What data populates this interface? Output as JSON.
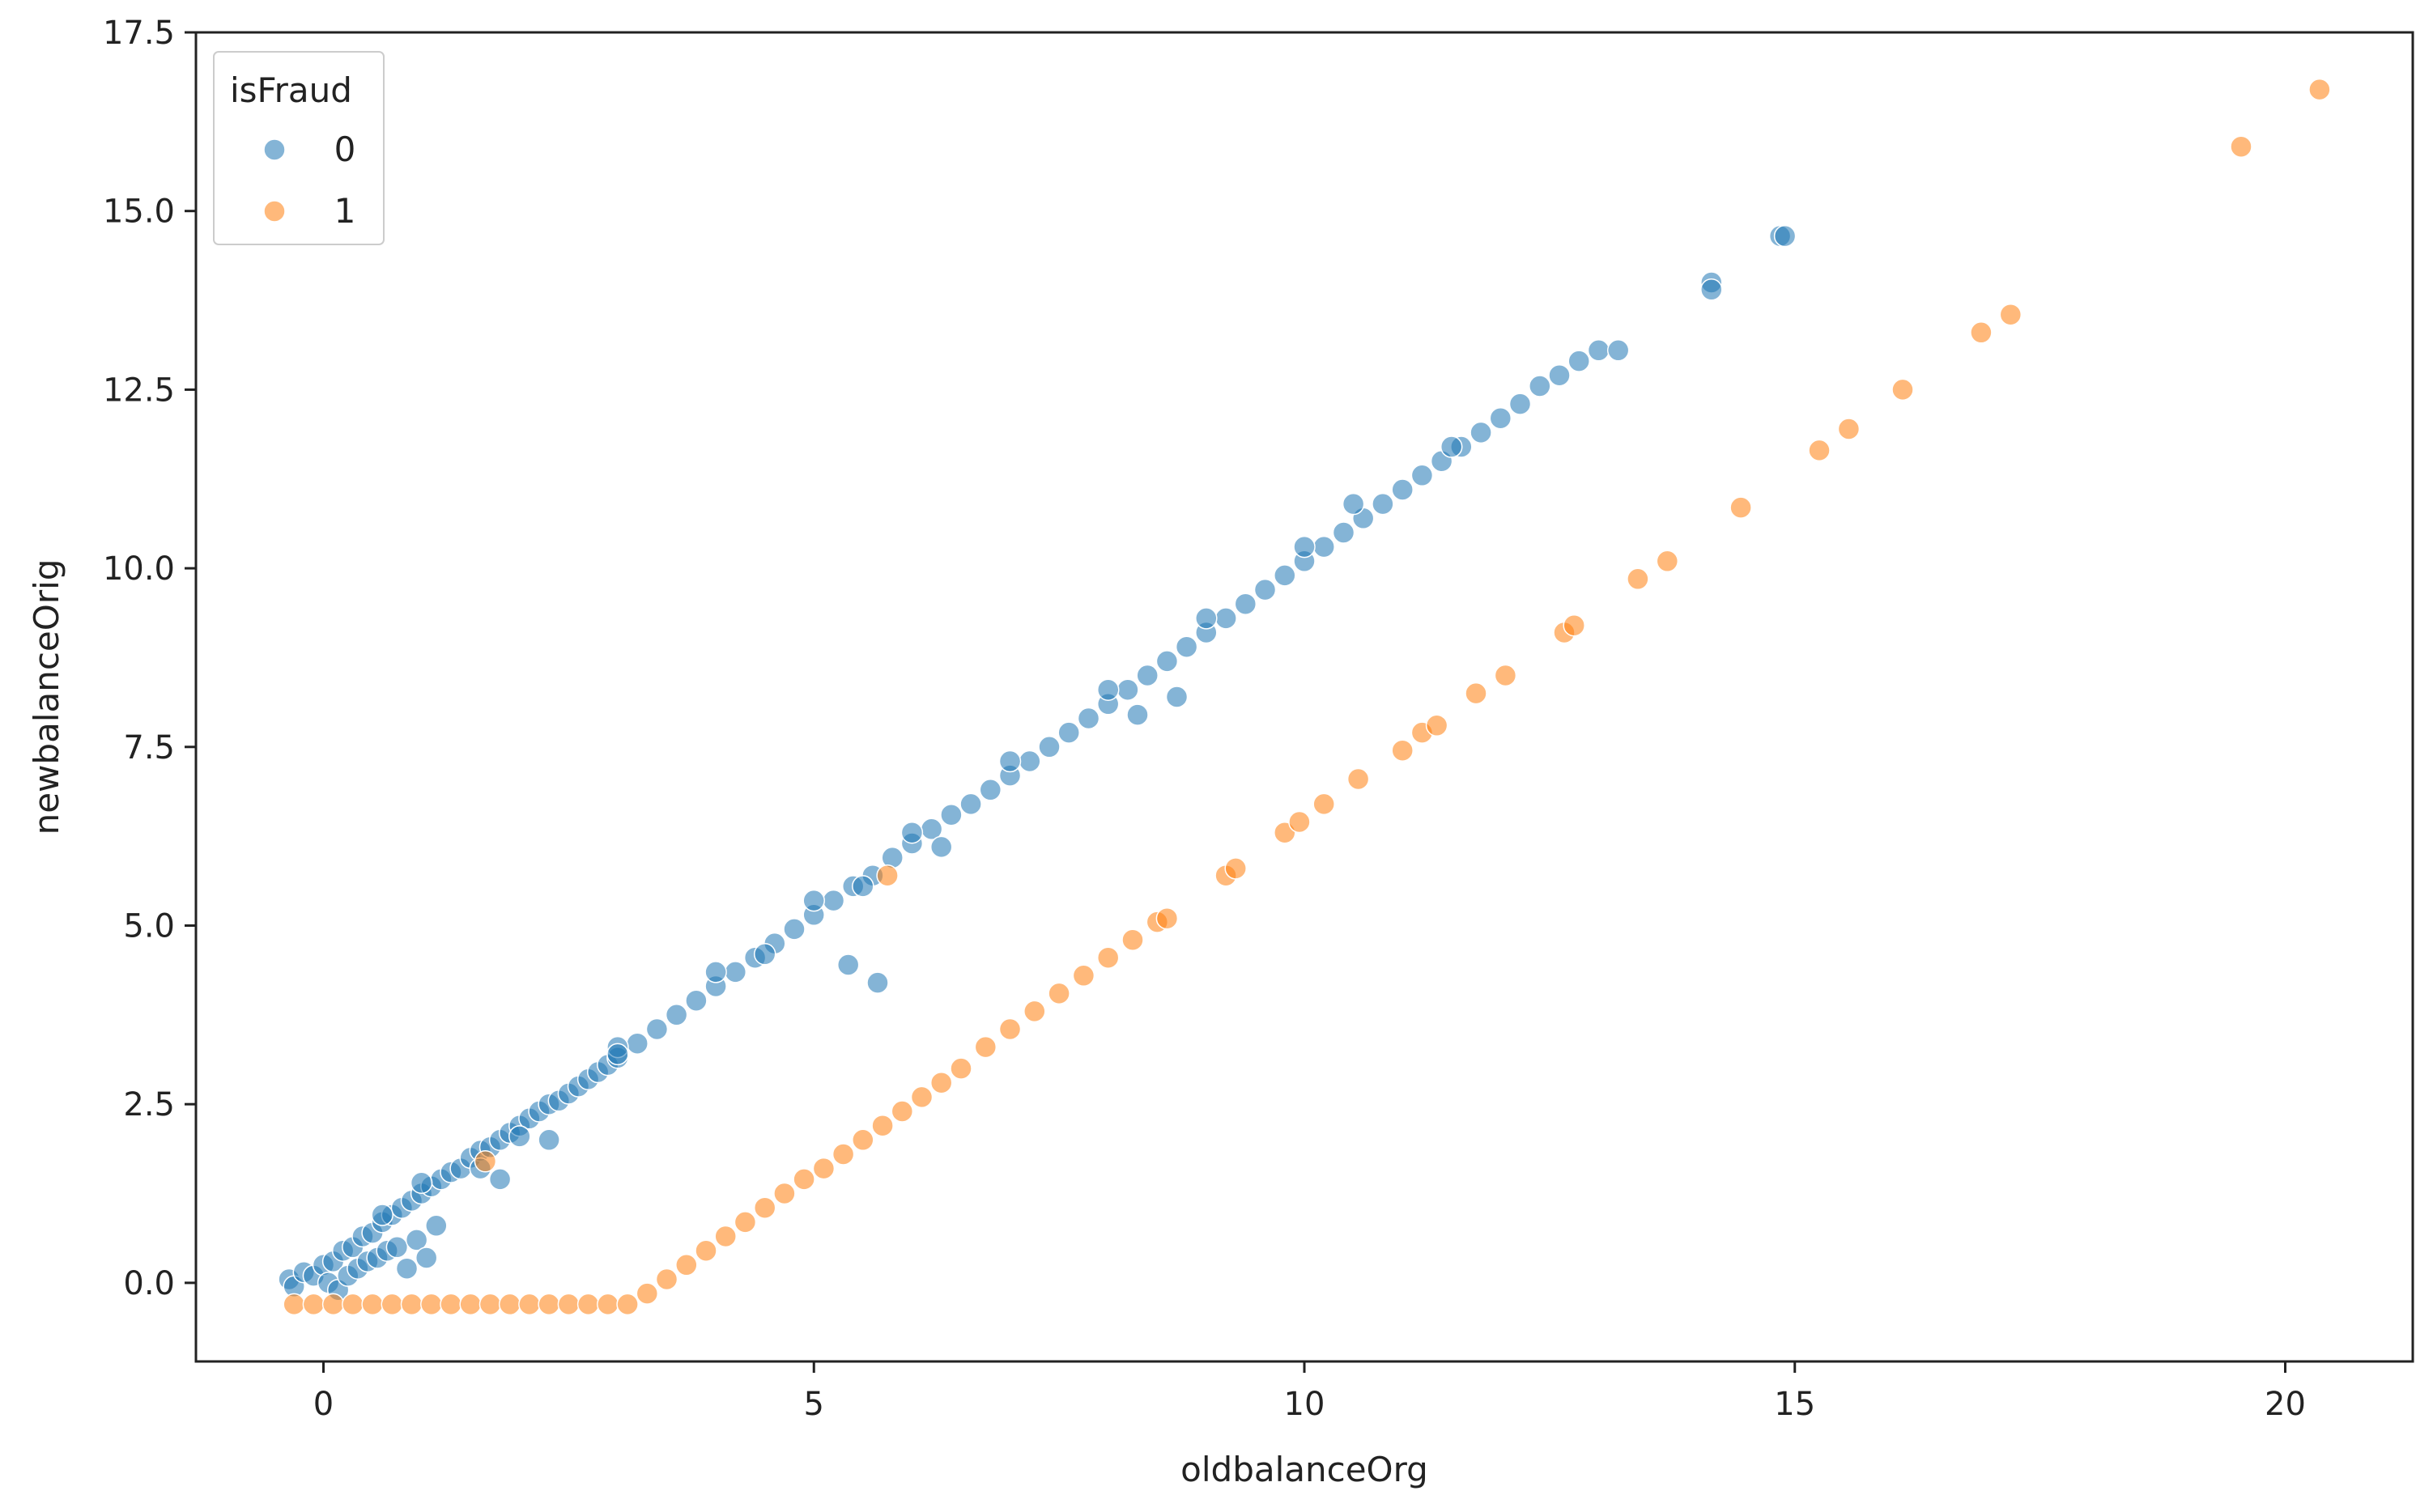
{
  "chart_data": {
    "type": "scatter",
    "title": "",
    "xlabel": "oldbalanceOrg",
    "ylabel": "newbalanceOrig",
    "xlim": [
      -1.3,
      21.3
    ],
    "ylim": [
      -1.1,
      17.5
    ],
    "x_ticks": [
      0,
      5,
      10,
      15,
      20
    ],
    "x_tick_labels": [
      "0",
      "5",
      "10",
      "15",
      "20"
    ],
    "y_ticks": [
      0,
      2.5,
      5,
      7.5,
      10,
      12.5,
      15,
      17.5
    ],
    "y_tick_labels": [
      "0.0",
      "2.5",
      "5.0",
      "7.5",
      "10.0",
      "12.5",
      "15.0",
      "17.5"
    ],
    "grid": false,
    "legend": {
      "title": "isFraud",
      "placement": "top-left",
      "entries": [
        {
          "label": "0",
          "color": "#1f77b4"
        },
        {
          "label": "1",
          "color": "#ff7f0e"
        }
      ]
    },
    "colors": {
      "0": "#1f77b4",
      "1": "#ff7f0e"
    },
    "series": [
      {
        "name": "0",
        "color": "#1f77b4",
        "points": [
          [
            -0.35,
            0.05
          ],
          [
            -0.3,
            -0.05
          ],
          [
            -0.2,
            0.15
          ],
          [
            -0.1,
            0.1
          ],
          [
            0.0,
            0.25
          ],
          [
            0.05,
            0.0
          ],
          [
            0.1,
            0.3
          ],
          [
            0.15,
            -0.1
          ],
          [
            0.2,
            0.45
          ],
          [
            0.25,
            0.1
          ],
          [
            0.3,
            0.5
          ],
          [
            0.35,
            0.2
          ],
          [
            0.4,
            0.65
          ],
          [
            0.45,
            0.3
          ],
          [
            0.5,
            0.7
          ],
          [
            0.55,
            0.35
          ],
          [
            0.6,
            0.85
          ],
          [
            0.65,
            0.45
          ],
          [
            0.7,
            0.95
          ],
          [
            0.75,
            0.5
          ],
          [
            0.8,
            1.05
          ],
          [
            0.85,
            0.2
          ],
          [
            0.9,
            1.15
          ],
          [
            0.95,
            0.6
          ],
          [
            1.0,
            1.25
          ],
          [
            1.05,
            0.35
          ],
          [
            1.1,
            1.35
          ],
          [
            1.15,
            0.8
          ],
          [
            1.2,
            1.45
          ],
          [
            1.3,
            1.55
          ],
          [
            1.4,
            1.6
          ],
          [
            1.5,
            1.75
          ],
          [
            1.6,
            1.85
          ],
          [
            1.7,
            1.9
          ],
          [
            1.8,
            2.0
          ],
          [
            1.9,
            2.1
          ],
          [
            2.0,
            2.2
          ],
          [
            2.1,
            2.3
          ],
          [
            2.2,
            2.4
          ],
          [
            2.3,
            2.5
          ],
          [
            2.4,
            2.55
          ],
          [
            2.5,
            2.65
          ],
          [
            2.6,
            2.75
          ],
          [
            2.7,
            2.85
          ],
          [
            2.8,
            2.95
          ],
          [
            2.9,
            3.05
          ],
          [
            3.0,
            3.15
          ],
          [
            3.2,
            3.35
          ],
          [
            3.4,
            3.55
          ],
          [
            3.6,
            3.75
          ],
          [
            3.8,
            3.95
          ],
          [
            4.0,
            4.15
          ],
          [
            4.2,
            4.35
          ],
          [
            4.4,
            4.55
          ],
          [
            4.6,
            4.75
          ],
          [
            4.8,
            4.95
          ],
          [
            5.0,
            5.15
          ],
          [
            5.2,
            5.35
          ],
          [
            5.4,
            5.55
          ],
          [
            5.6,
            5.7
          ],
          [
            5.8,
            5.95
          ],
          [
            6.0,
            6.15
          ],
          [
            6.2,
            6.35
          ],
          [
            6.4,
            6.55
          ],
          [
            6.6,
            6.7
          ],
          [
            6.8,
            6.9
          ],
          [
            7.0,
            7.1
          ],
          [
            7.2,
            7.3
          ],
          [
            7.4,
            7.5
          ],
          [
            7.6,
            7.7
          ],
          [
            7.8,
            7.9
          ],
          [
            8.0,
            8.1
          ],
          [
            8.2,
            8.3
          ],
          [
            8.4,
            8.5
          ],
          [
            8.6,
            8.7
          ],
          [
            8.8,
            8.9
          ],
          [
            9.0,
            9.1
          ],
          [
            9.2,
            9.3
          ],
          [
            9.4,
            9.5
          ],
          [
            9.6,
            9.7
          ],
          [
            9.8,
            9.9
          ],
          [
            10.0,
            10.1
          ],
          [
            10.2,
            10.3
          ],
          [
            10.4,
            10.5
          ],
          [
            10.6,
            10.7
          ],
          [
            10.8,
            10.9
          ],
          [
            11.0,
            11.1
          ],
          [
            11.2,
            11.3
          ],
          [
            11.4,
            11.5
          ],
          [
            11.6,
            11.7
          ],
          [
            11.8,
            11.9
          ],
          [
            12.0,
            12.1
          ],
          [
            12.2,
            12.3
          ],
          [
            12.4,
            12.55
          ],
          [
            12.6,
            12.7
          ],
          [
            12.8,
            12.9
          ],
          [
            13.0,
            13.05
          ],
          [
            13.2,
            13.05
          ],
          [
            0.6,
            0.95
          ],
          [
            1.0,
            1.4
          ],
          [
            1.6,
            1.6
          ],
          [
            2.0,
            2.05
          ],
          [
            3.0,
            3.3
          ],
          [
            4.0,
            4.35
          ],
          [
            5.0,
            5.35
          ],
          [
            6.0,
            6.3
          ],
          [
            7.0,
            7.3
          ],
          [
            8.0,
            8.3
          ],
          [
            9.0,
            9.3
          ],
          [
            10.0,
            10.3
          ],
          [
            10.5,
            10.9
          ],
          [
            11.5,
            11.7
          ],
          [
            1.8,
            1.45
          ],
          [
            2.3,
            2.0
          ],
          [
            3.0,
            3.2
          ],
          [
            4.5,
            4.6
          ],
          [
            5.5,
            5.55
          ],
          [
            6.3,
            6.1
          ],
          [
            8.3,
            7.95
          ],
          [
            8.7,
            8.2
          ],
          [
            5.35,
            4.45
          ],
          [
            5.65,
            4.2
          ],
          [
            14.15,
            14.0
          ],
          [
            14.15,
            13.9
          ],
          [
            14.85,
            14.65
          ],
          [
            14.9,
            14.65
          ]
        ]
      },
      {
        "name": "1",
        "color": "#ff7f0e",
        "points": [
          [
            -0.3,
            -0.3
          ],
          [
            -0.1,
            -0.3
          ],
          [
            0.1,
            -0.3
          ],
          [
            0.3,
            -0.3
          ],
          [
            0.5,
            -0.3
          ],
          [
            0.7,
            -0.3
          ],
          [
            0.9,
            -0.3
          ],
          [
            1.1,
            -0.3
          ],
          [
            1.3,
            -0.3
          ],
          [
            1.5,
            -0.3
          ],
          [
            1.7,
            -0.3
          ],
          [
            1.9,
            -0.3
          ],
          [
            2.1,
            -0.3
          ],
          [
            2.3,
            -0.3
          ],
          [
            2.5,
            -0.3
          ],
          [
            2.7,
            -0.3
          ],
          [
            2.9,
            -0.3
          ],
          [
            3.1,
            -0.3
          ],
          [
            3.3,
            -0.15
          ],
          [
            3.5,
            0.05
          ],
          [
            3.7,
            0.25
          ],
          [
            3.9,
            0.45
          ],
          [
            4.1,
            0.65
          ],
          [
            4.3,
            0.85
          ],
          [
            4.5,
            1.05
          ],
          [
            4.7,
            1.25
          ],
          [
            4.9,
            1.45
          ],
          [
            5.1,
            1.6
          ],
          [
            5.3,
            1.8
          ],
          [
            5.5,
            2.0
          ],
          [
            5.7,
            2.2
          ],
          [
            5.9,
            2.4
          ],
          [
            6.1,
            2.6
          ],
          [
            6.3,
            2.8
          ],
          [
            6.5,
            3.0
          ],
          [
            6.75,
            3.3
          ],
          [
            7.0,
            3.55
          ],
          [
            7.25,
            3.8
          ],
          [
            7.5,
            4.05
          ],
          [
            7.75,
            4.3
          ],
          [
            8.0,
            4.55
          ],
          [
            8.25,
            4.8
          ],
          [
            8.5,
            5.05
          ],
          [
            8.6,
            5.1
          ],
          [
            9.2,
            5.7
          ],
          [
            9.3,
            5.8
          ],
          [
            9.8,
            6.3
          ],
          [
            9.95,
            6.45
          ],
          [
            10.2,
            6.7
          ],
          [
            10.55,
            7.05
          ],
          [
            11.0,
            7.45
          ],
          [
            11.2,
            7.7
          ],
          [
            11.35,
            7.8
          ],
          [
            11.75,
            8.25
          ],
          [
            12.05,
            8.5
          ],
          [
            12.65,
            9.1
          ],
          [
            12.75,
            9.2
          ],
          [
            13.4,
            9.85
          ],
          [
            13.7,
            10.1
          ],
          [
            14.45,
            10.85
          ],
          [
            15.25,
            11.65
          ],
          [
            15.55,
            11.95
          ],
          [
            16.1,
            12.5
          ],
          [
            16.9,
            13.3
          ],
          [
            17.2,
            13.55
          ],
          [
            19.55,
            15.9
          ],
          [
            20.35,
            16.7
          ],
          [
            1.65,
            1.7
          ],
          [
            5.75,
            5.7
          ]
        ]
      }
    ]
  }
}
